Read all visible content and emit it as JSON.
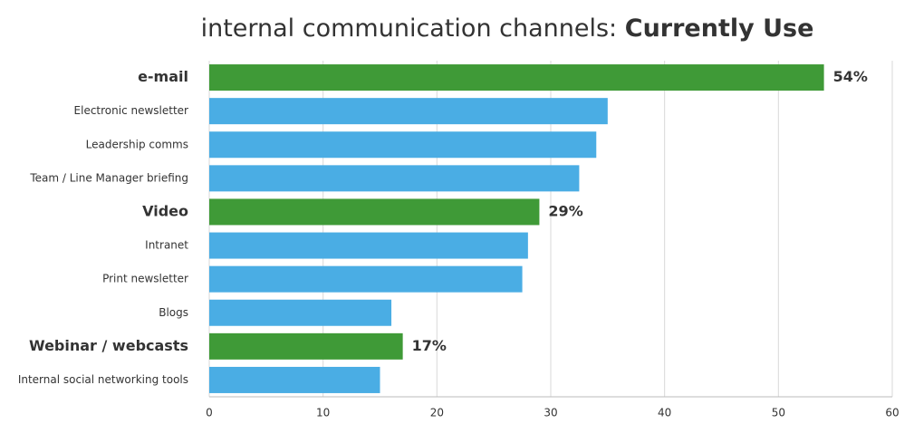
{
  "chart_data": {
    "type": "bar",
    "orientation": "horizontal",
    "title": "internal communication channels:",
    "title_bold": "Currently Use",
    "categories": [
      "e-mail",
      "Electronic newsletter",
      "Leadership comms",
      "Team / Line Manager briefing",
      "Video",
      "Intranet",
      "Print newsletter",
      "Blogs",
      "Webinar / webcasts",
      "Internal social networking tools"
    ],
    "values": [
      54,
      35,
      34,
      32.5,
      29,
      28,
      27.5,
      16,
      17,
      15
    ],
    "value_labels": [
      "54%",
      null,
      null,
      null,
      "29%",
      null,
      null,
      null,
      "17%",
      null
    ],
    "colors": [
      "#3f9a37",
      "#4aade4",
      "#4aade4",
      "#4aade4",
      "#3f9a37",
      "#4aade4",
      "#4aade4",
      "#4aade4",
      "#3f9a37",
      "#4aade4"
    ],
    "xlim": [
      0,
      60
    ],
    "xticks": [
      0,
      10,
      20,
      30,
      40,
      50,
      60
    ],
    "grid": true
  }
}
